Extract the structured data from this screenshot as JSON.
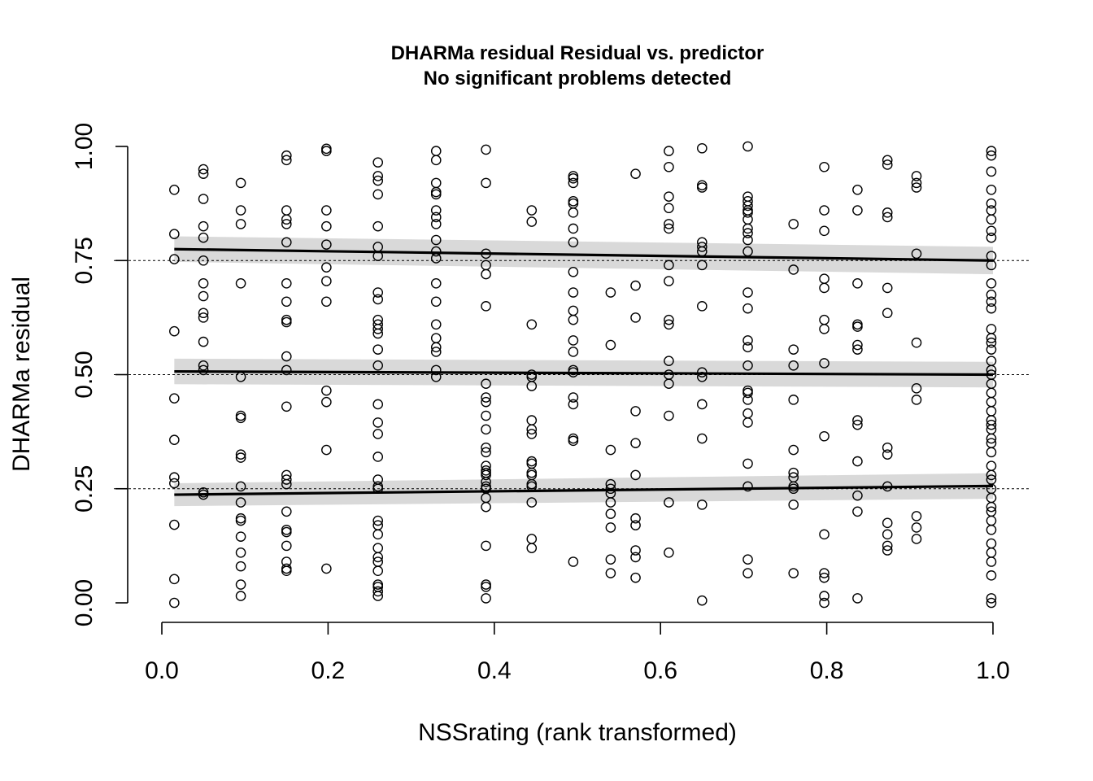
{
  "chart_data": {
    "type": "scatter",
    "title": "DHARMa residual Residual vs. predictor",
    "subtitle": "No significant problems detected",
    "xlabel": "NSSrating (rank transformed)",
    "ylabel": "DHARMa residual",
    "xlim": [
      0,
      1
    ],
    "ylim": [
      0,
      1
    ],
    "x_ticks": [
      "0.0",
      "0.2",
      "0.4",
      "0.6",
      "0.8",
      "1.0"
    ],
    "y_ticks": [
      "0.00",
      "0.25",
      "0.50",
      "0.75",
      "1.00"
    ],
    "reference_lines": [
      0.25,
      0.5,
      0.75
    ],
    "quantile_fits": [
      {
        "quantile": 0.25,
        "x": [
          0.015,
          1.0
        ],
        "y": [
          0.237,
          0.256
        ],
        "band_halfwidth": [
          0.025,
          0.028
        ]
      },
      {
        "quantile": 0.5,
        "x": [
          0.015,
          1.0
        ],
        "y": [
          0.507,
          0.5
        ],
        "band_halfwidth": [
          0.028,
          0.028
        ]
      },
      {
        "quantile": 0.75,
        "x": [
          0.015,
          1.0
        ],
        "y": [
          0.775,
          0.75
        ],
        "band_halfwidth": [
          0.028,
          0.03
        ]
      }
    ],
    "point_style": "open-circle",
    "points": [
      {
        "x": 0.015,
        "y": [
          0.905,
          0.808,
          0.753,
          0.595,
          0.448,
          0.357,
          0.275,
          0.262,
          0.171,
          0.052,
          0.0
        ]
      },
      {
        "x": 0.05,
        "y": [
          0.95,
          0.94,
          0.885,
          0.825,
          0.8,
          0.75,
          0.7,
          0.672,
          0.635,
          0.625,
          0.572,
          0.52,
          0.51,
          0.242,
          0.237
        ]
      },
      {
        "x": 0.095,
        "y": [
          0.92,
          0.86,
          0.83,
          0.7,
          0.495,
          0.41,
          0.405,
          0.325,
          0.318,
          0.255,
          0.22,
          0.185,
          0.18,
          0.145,
          0.11,
          0.08,
          0.04,
          0.015
        ]
      },
      {
        "x": 0.15,
        "y": [
          0.98,
          0.97,
          0.86,
          0.84,
          0.83,
          0.79,
          0.7,
          0.66,
          0.62,
          0.615,
          0.54,
          0.51,
          0.43,
          0.28,
          0.27,
          0.26,
          0.2,
          0.16,
          0.155,
          0.125,
          0.09,
          0.075,
          0.07
        ]
      },
      {
        "x": 0.198,
        "y": [
          0.995,
          0.99,
          0.86,
          0.825,
          0.785,
          0.735,
          0.705,
          0.66,
          0.465,
          0.44,
          0.335,
          0.075
        ]
      },
      {
        "x": 0.26,
        "y": [
          0.965,
          0.935,
          0.925,
          0.895,
          0.825,
          0.78,
          0.76,
          0.68,
          0.665,
          0.62,
          0.61,
          0.6,
          0.59,
          0.555,
          0.52,
          0.435,
          0.395,
          0.37,
          0.32,
          0.27,
          0.255,
          0.25,
          0.18,
          0.17,
          0.15,
          0.12,
          0.1,
          0.09,
          0.07,
          0.04,
          0.035,
          0.025,
          0.015
        ]
      },
      {
        "x": 0.33,
        "y": [
          0.99,
          0.97,
          0.92,
          0.9,
          0.895,
          0.86,
          0.845,
          0.83,
          0.795,
          0.77,
          0.755,
          0.7,
          0.66,
          0.61,
          0.58,
          0.56,
          0.55,
          0.51,
          0.495
        ]
      },
      {
        "x": 0.39,
        "y": [
          0.993,
          0.92,
          0.765,
          0.74,
          0.72,
          0.65,
          0.48,
          0.45,
          0.44,
          0.41,
          0.38,
          0.34,
          0.33,
          0.3,
          0.29,
          0.285,
          0.28,
          0.265,
          0.255,
          0.25,
          0.23,
          0.21,
          0.125,
          0.04,
          0.035,
          0.01
        ]
      },
      {
        "x": 0.445,
        "y": [
          0.86,
          0.835,
          0.61,
          0.5,
          0.495,
          0.475,
          0.4,
          0.38,
          0.37,
          0.31,
          0.305,
          0.285,
          0.28,
          0.26,
          0.255,
          0.22,
          0.14,
          0.12
        ]
      },
      {
        "x": 0.495,
        "y": [
          0.935,
          0.93,
          0.92,
          0.88,
          0.875,
          0.855,
          0.82,
          0.79,
          0.725,
          0.68,
          0.64,
          0.62,
          0.575,
          0.55,
          0.51,
          0.505,
          0.45,
          0.435,
          0.36,
          0.355,
          0.09
        ]
      },
      {
        "x": 0.54,
        "y": [
          0.68,
          0.565,
          0.335,
          0.26,
          0.25,
          0.24,
          0.22,
          0.195,
          0.165,
          0.095,
          0.065
        ]
      },
      {
        "x": 0.57,
        "y": [
          0.94,
          0.695,
          0.625,
          0.42,
          0.35,
          0.28,
          0.185,
          0.17,
          0.115,
          0.1,
          0.055
        ]
      },
      {
        "x": 0.61,
        "y": [
          0.99,
          0.955,
          0.89,
          0.865,
          0.83,
          0.82,
          0.74,
          0.705,
          0.62,
          0.61,
          0.53,
          0.5,
          0.48,
          0.41,
          0.22,
          0.11
        ]
      },
      {
        "x": 0.65,
        "y": [
          0.996,
          0.915,
          0.91,
          0.79,
          0.78,
          0.77,
          0.74,
          0.65,
          0.505,
          0.495,
          0.435,
          0.36,
          0.215,
          0.005
        ]
      },
      {
        "x": 0.705,
        "y": [
          1.0,
          0.89,
          0.88,
          0.87,
          0.86,
          0.855,
          0.84,
          0.82,
          0.81,
          0.795,
          0.77,
          0.68,
          0.645,
          0.575,
          0.56,
          0.52,
          0.465,
          0.46,
          0.445,
          0.415,
          0.395,
          0.305,
          0.255,
          0.095,
          0.065
        ]
      },
      {
        "x": 0.76,
        "y": [
          0.83,
          0.73,
          0.555,
          0.52,
          0.445,
          0.335,
          0.285,
          0.275,
          0.255,
          0.25,
          0.215,
          0.065
        ]
      },
      {
        "x": 0.797,
        "y": [
          0.955,
          0.86,
          0.815,
          0.71,
          0.69,
          0.62,
          0.6,
          0.525,
          0.365,
          0.15,
          0.065,
          0.055,
          0.015,
          0.0
        ]
      },
      {
        "x": 0.837,
        "y": [
          0.905,
          0.86,
          0.7,
          0.61,
          0.605,
          0.565,
          0.555,
          0.4,
          0.39,
          0.31,
          0.235,
          0.2,
          0.01
        ]
      },
      {
        "x": 0.873,
        "y": [
          0.97,
          0.96,
          0.855,
          0.845,
          0.69,
          0.635,
          0.34,
          0.325,
          0.255,
          0.175,
          0.15,
          0.125,
          0.115
        ]
      },
      {
        "x": 0.908,
        "y": [
          0.935,
          0.92,
          0.91,
          0.765,
          0.57,
          0.47,
          0.445,
          0.19,
          0.165,
          0.14
        ]
      },
      {
        "x": 0.998,
        "y": [
          0.99,
          0.98,
          0.945,
          0.905,
          0.875,
          0.86,
          0.84,
          0.815,
          0.8,
          0.76,
          0.74,
          0.7,
          0.675,
          0.66,
          0.645,
          0.6,
          0.58,
          0.57,
          0.555,
          0.53,
          0.51,
          0.5,
          0.48,
          0.46,
          0.44,
          0.42,
          0.4,
          0.39,
          0.38,
          0.36,
          0.35,
          0.33,
          0.3,
          0.28,
          0.27,
          0.25,
          0.23,
          0.21,
          0.2,
          0.18,
          0.16,
          0.13,
          0.11,
          0.09,
          0.06,
          0.01,
          0.0
        ]
      }
    ]
  }
}
